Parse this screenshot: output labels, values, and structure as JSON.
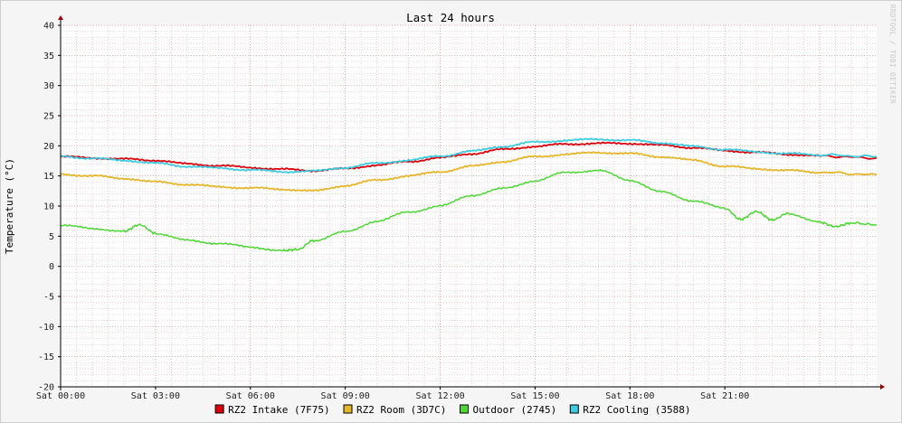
{
  "chart_data": {
    "type": "line",
    "title": "Last 24 hours",
    "ylabel": "Temperature (°C)",
    "xlabel": "",
    "watermark": "RRDTOOL / TOBI OETIKER",
    "ylim": [
      -20,
      40
    ],
    "xlim_hours": [
      0,
      25.8
    ],
    "y_ticks": [
      40,
      35,
      30,
      25,
      20,
      15,
      10,
      5,
      0,
      -5,
      -10,
      -15,
      -20
    ],
    "x_ticks": [
      {
        "hour": 0,
        "label": "Sat 00:00"
      },
      {
        "hour": 3,
        "label": "Sat 03:00"
      },
      {
        "hour": 6,
        "label": "Sat 06:00"
      },
      {
        "hour": 9,
        "label": "Sat 09:00"
      },
      {
        "hour": 12,
        "label": "Sat 12:00"
      },
      {
        "hour": 15,
        "label": "Sat 15:00"
      },
      {
        "hour": 18,
        "label": "Sat 18:00"
      },
      {
        "hour": 21,
        "label": "Sat 21:00"
      }
    ],
    "grid": true,
    "legend_position": "bottom",
    "series": [
      {
        "name": "RZ2 Intake (7F75)",
        "color": "#e0000b",
        "x": [
          0,
          1,
          2,
          3,
          4,
          5,
          6,
          7,
          8,
          9,
          10,
          11,
          12,
          13,
          14,
          15,
          16,
          17,
          18,
          19,
          20,
          21,
          22,
          23,
          24,
          25.8
        ],
        "y": [
          18.2,
          18.0,
          17.8,
          17.6,
          17.0,
          16.7,
          16.4,
          16.1,
          15.9,
          16.2,
          16.8,
          17.4,
          18.0,
          18.7,
          19.4,
          19.9,
          20.3,
          20.4,
          20.4,
          20.1,
          19.7,
          19.2,
          18.9,
          18.6,
          18.3,
          18.0
        ]
      },
      {
        "name": "RZ2 Room (3D7C)",
        "color": "#e5b52a",
        "x": [
          0,
          1,
          2,
          3,
          4,
          5,
          6,
          7,
          8,
          9,
          10,
          11,
          12,
          13,
          14,
          15,
          16,
          17,
          18,
          19,
          20,
          21,
          22,
          23,
          24,
          25.8
        ],
        "y": [
          15.3,
          15.0,
          14.6,
          14.0,
          13.6,
          13.2,
          13.0,
          12.8,
          12.5,
          13.4,
          14.3,
          15.0,
          15.7,
          16.6,
          17.4,
          18.2,
          18.6,
          18.9,
          18.7,
          18.2,
          17.6,
          16.6,
          16.2,
          15.9,
          15.6,
          15.2
        ]
      },
      {
        "name": "Outdoor (2745)",
        "color": "#4ad832",
        "x": [
          0,
          1,
          2,
          2.5,
          3,
          4,
          5,
          6,
          7,
          7.5,
          8,
          9,
          10,
          11,
          12,
          13,
          14,
          15,
          16,
          17,
          18,
          19,
          20,
          21,
          21.5,
          22,
          22.5,
          23,
          24,
          24.5,
          25,
          25.8
        ],
        "y": [
          6.8,
          6.3,
          5.8,
          6.9,
          5.5,
          4.3,
          3.8,
          3.2,
          2.6,
          2.8,
          4.3,
          5.7,
          7.5,
          9.0,
          10.0,
          11.8,
          12.9,
          14.2,
          15.6,
          15.9,
          14.3,
          12.3,
          10.9,
          9.6,
          7.8,
          9.1,
          7.7,
          8.8,
          7.3,
          6.6,
          7.2,
          6.9
        ]
      },
      {
        "name": "RZ2 Cooling (3588)",
        "color": "#3ccbdf",
        "x": [
          0,
          1,
          2,
          3,
          4,
          5,
          6,
          7,
          8,
          9,
          10,
          11,
          12,
          13,
          14,
          15,
          16,
          17,
          18,
          19,
          20,
          21,
          22,
          23,
          24,
          25.8
        ],
        "y": [
          18.3,
          17.9,
          17.6,
          17.1,
          16.6,
          16.3,
          16.0,
          15.7,
          15.8,
          16.4,
          17.1,
          17.6,
          18.3,
          19.1,
          19.9,
          20.6,
          20.9,
          21.1,
          20.9,
          20.5,
          19.9,
          19.4,
          19.0,
          18.7,
          18.5,
          18.2
        ]
      }
    ]
  }
}
